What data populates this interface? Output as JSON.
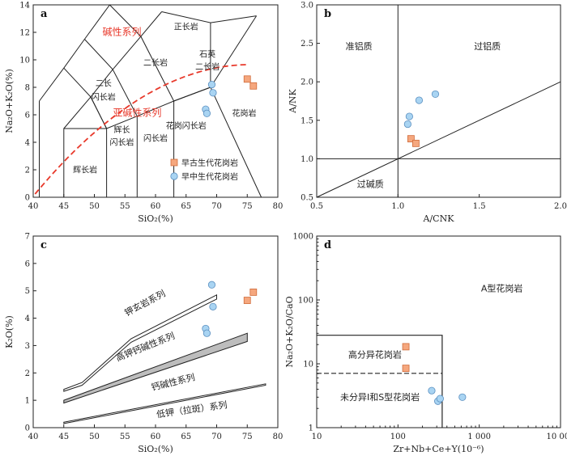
{
  "chart_data": [
    {
      "panel": "a",
      "type": "scatter",
      "xlabel": "SiO₂(%)",
      "ylabel": "Na₂O+K₂O(%)",
      "xlim": [
        40,
        80
      ],
      "ylim": [
        0,
        14
      ],
      "xticks": [
        40,
        45,
        50,
        55,
        60,
        65,
        70,
        75,
        80
      ],
      "yticks": [
        0,
        2,
        4,
        6,
        8,
        10,
        12,
        14
      ],
      "series": [
        {
          "name": "早古生代花岗岩",
          "marker": "square",
          "color": "#f5a77e",
          "points": [
            [
              75.0,
              8.6
            ],
            [
              76.0,
              8.1
            ]
          ]
        },
        {
          "name": "早中生代花岗岩",
          "marker": "circle",
          "color": "#a9d4f2",
          "points": [
            [
              69.2,
              8.2
            ],
            [
              69.4,
              7.6
            ],
            [
              68.2,
              6.4
            ],
            [
              68.4,
              6.1
            ]
          ]
        }
      ],
      "field_labels": [
        "正长岩",
        "石英",
        "二长岩",
        "二长岩",
        "二长",
        "闪长岩",
        "辉长",
        "闪长岩",
        "闪长岩",
        "花岗闪长岩",
        "花岗岩",
        "辉长岩"
      ],
      "series_labels": [
        "碱性系列",
        "亚碱性系列"
      ],
      "legend": "center-right"
    },
    {
      "panel": "b",
      "type": "scatter",
      "xlabel": "A/CNK",
      "ylabel": "A/NK",
      "xlim": [
        0.5,
        2.0
      ],
      "ylim": [
        0.5,
        3.0
      ],
      "xticks": [
        "0.5",
        "1.0",
        "1.5",
        "2.0"
      ],
      "yticks": [
        "0.5",
        "1.0",
        "1.5",
        "2.0",
        "2.5",
        "3.0"
      ],
      "series": [
        {
          "name": "早古生代花岗岩",
          "marker": "square",
          "color": "#f5a77e",
          "points": [
            [
              1.08,
              1.26
            ],
            [
              1.11,
              1.2
            ]
          ]
        },
        {
          "name": "早中生代花岗岩",
          "marker": "circle",
          "color": "#a9d4f2",
          "points": [
            [
              1.23,
              1.84
            ],
            [
              1.13,
              1.76
            ],
            [
              1.07,
              1.55
            ],
            [
              1.06,
              1.45
            ]
          ]
        }
      ],
      "field_labels": [
        "准铝质",
        "过铝质",
        "过碱质"
      ]
    },
    {
      "panel": "c",
      "type": "scatter",
      "xlabel": "SiO₂(%)",
      "ylabel": "K₂O(%)",
      "xlim": [
        40,
        80
      ],
      "ylim": [
        0,
        7
      ],
      "xticks": [
        40,
        45,
        50,
        55,
        60,
        65,
        70,
        75,
        80
      ],
      "yticks": [
        0,
        1,
        2,
        3,
        4,
        5,
        6,
        7
      ],
      "series": [
        {
          "name": "早古生代花岗岩",
          "marker": "square",
          "color": "#f5a77e",
          "points": [
            [
              75.0,
              4.65
            ],
            [
              76.0,
              4.95
            ]
          ]
        },
        {
          "name": "早中生代花岗岩",
          "marker": "circle",
          "color": "#a9d4f2",
          "points": [
            [
              69.2,
              5.22
            ],
            [
              69.4,
              4.42
            ],
            [
              68.2,
              3.62
            ],
            [
              68.4,
              3.45
            ]
          ]
        }
      ],
      "field_labels": [
        "钾玄岩系列",
        "高钾钙碱性系列",
        "钙碱性系列",
        "低钾（拉斑）系列"
      ]
    },
    {
      "panel": "d",
      "type": "scatter",
      "xlabel": "Zr+Nb+Ce+Y(10⁻⁶)",
      "ylabel": "Na₂O+K₂O/CaO",
      "xscale": "log",
      "yscale": "log",
      "xlim": [
        10,
        10000
      ],
      "ylim": [
        1,
        1000
      ],
      "xticks": [
        "10",
        "100",
        "1 000",
        "10 000"
      ],
      "yticks": [
        "1",
        "10",
        "100",
        "1000"
      ],
      "series": [
        {
          "name": "早古生代花岗岩",
          "marker": "square",
          "color": "#f5a77e",
          "points": [
            [
              125,
              18.5
            ],
            [
              125,
              8.5
            ]
          ]
        },
        {
          "name": "早中生代花岗岩",
          "marker": "circle",
          "color": "#a9d4f2",
          "points": [
            [
              260,
              3.8
            ],
            [
              310,
              2.6
            ],
            [
              330,
              2.85
            ],
            [
              620,
              3.0
            ]
          ]
        }
      ],
      "field_labels": [
        "A型花岗岩",
        "高分异花岗岩",
        "未分异I和S型花岗岩"
      ]
    }
  ]
}
